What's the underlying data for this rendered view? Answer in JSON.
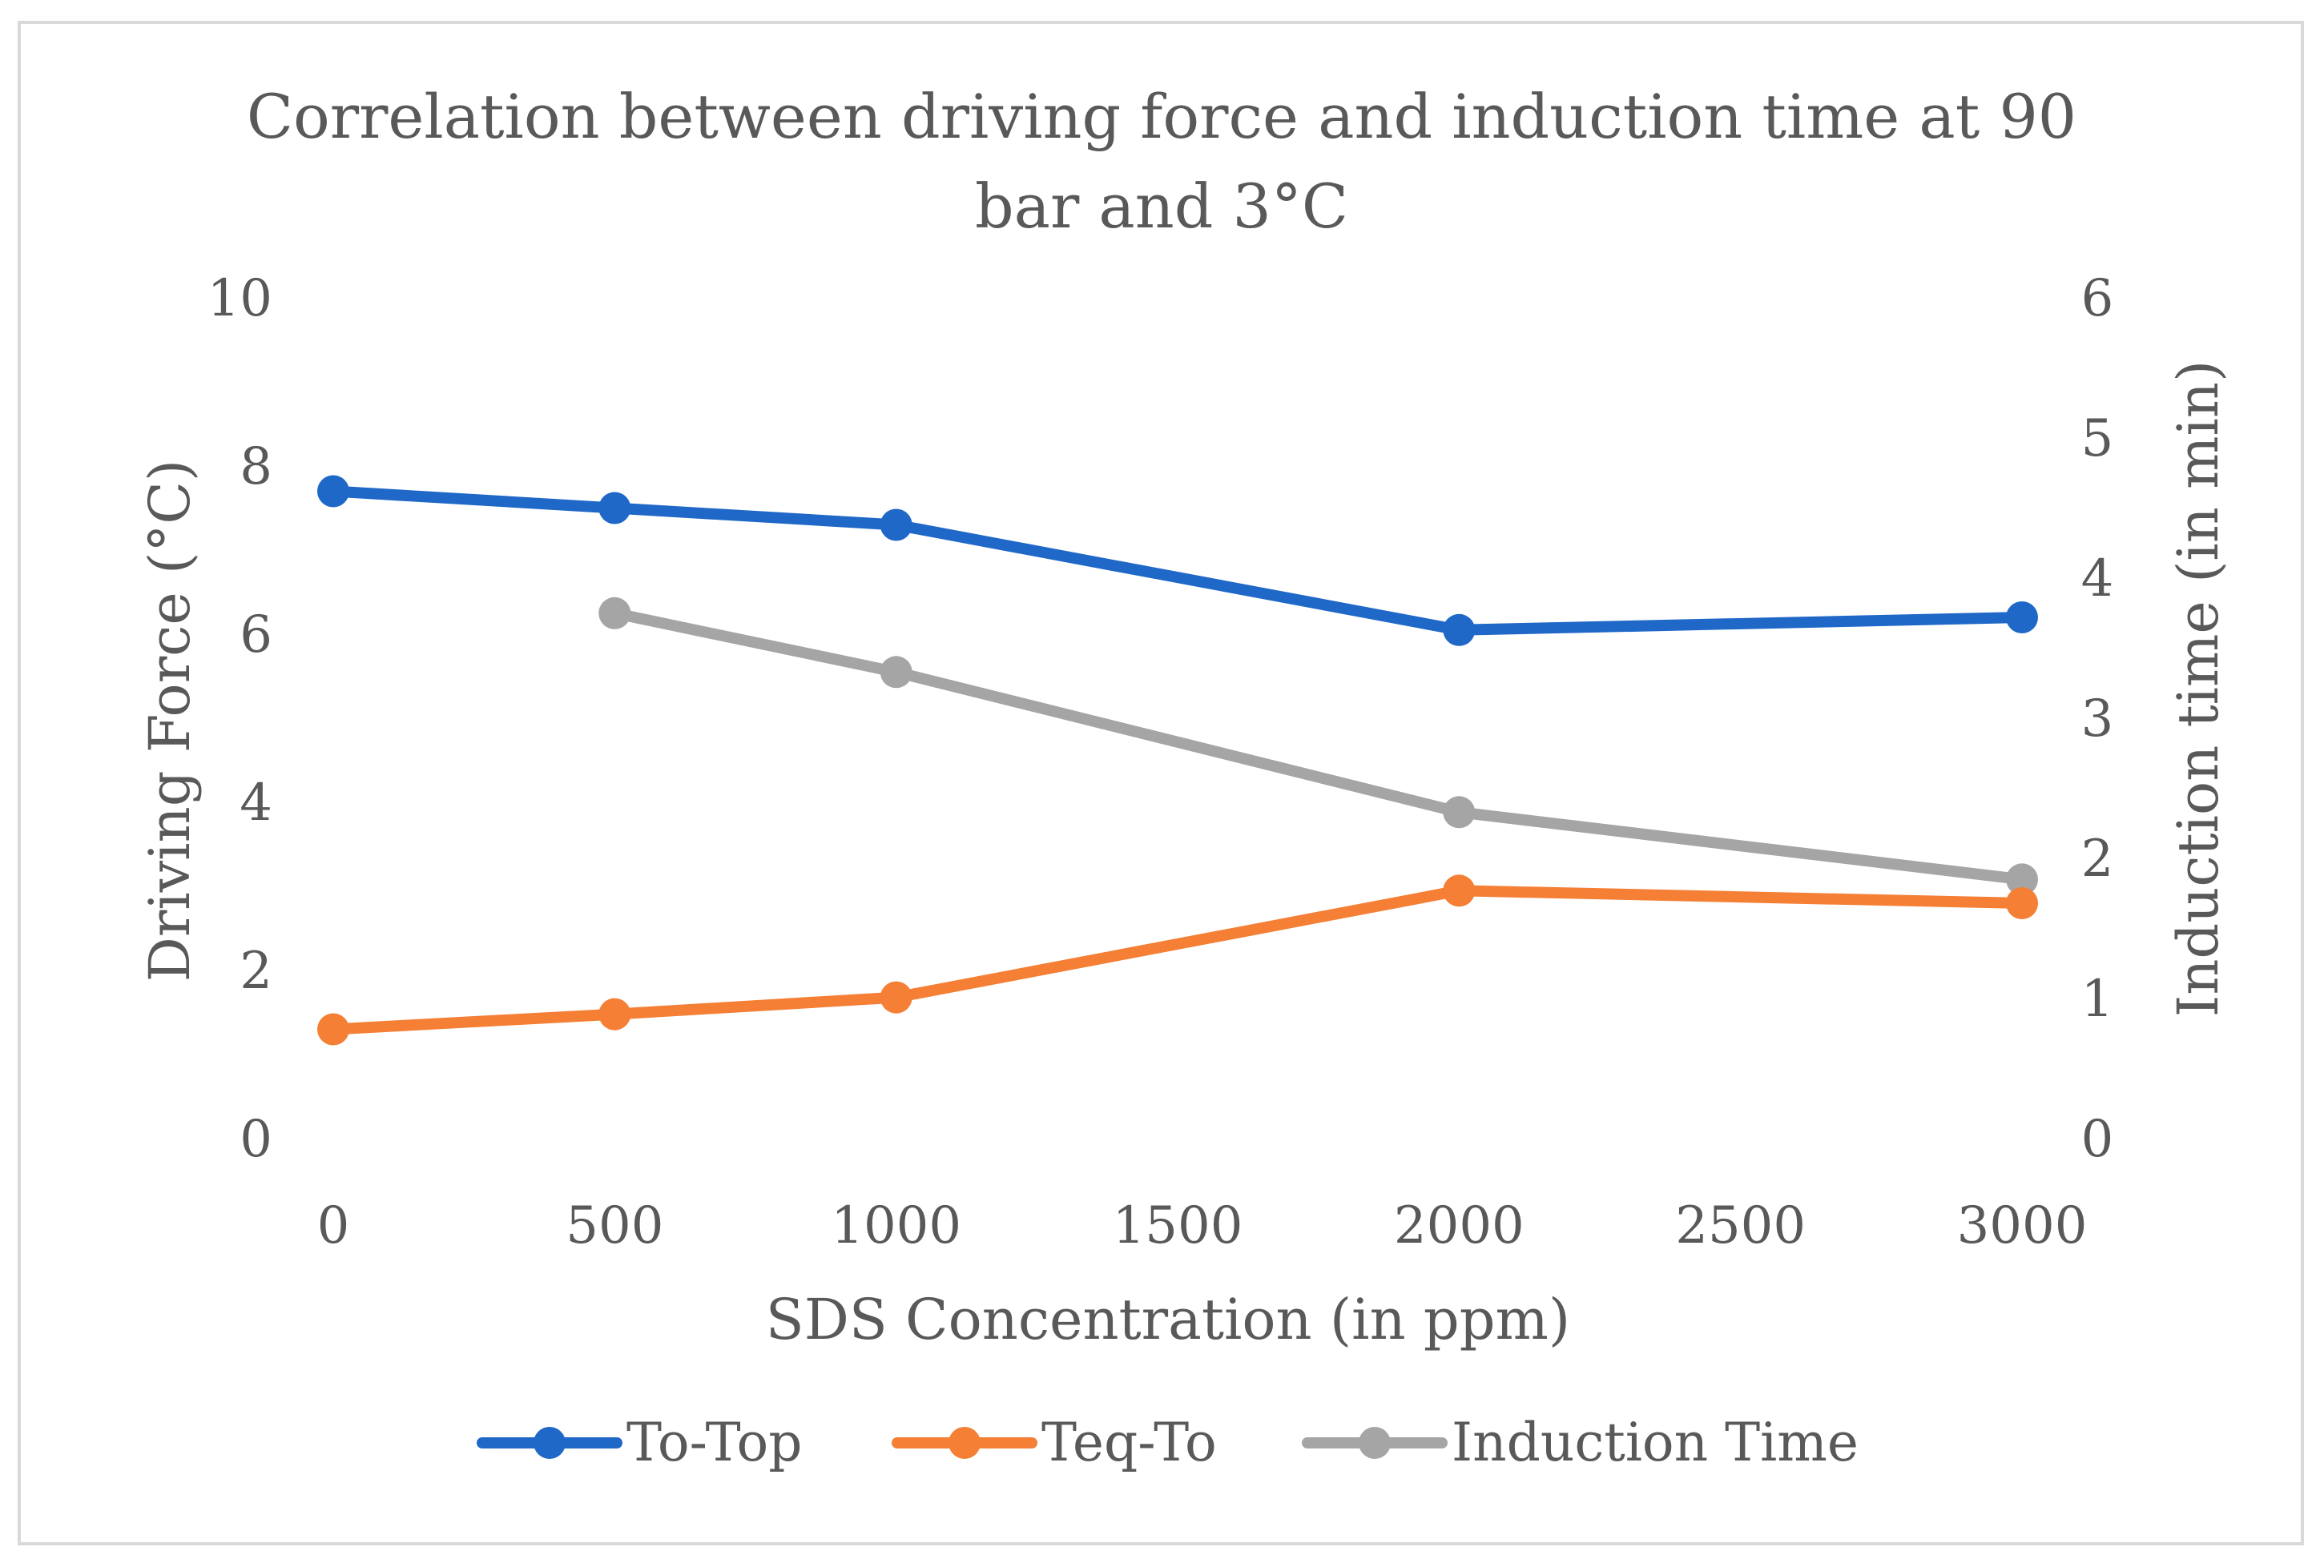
{
  "chart_data": {
    "type": "line",
    "title_lines": [
      "Correlation between driving force and induction time at 90",
      "bar and  3°C"
    ],
    "xlabel": "SDS Concentration (in ppm)",
    "ylabel": "Driving Force (°C)",
    "y2label": "Induction time (in min)",
    "x_ticks": [
      "0",
      "500",
      "1000",
      "1500",
      "2000",
      "2500",
      "3000"
    ],
    "y_ticks": [
      "0",
      "2",
      "4",
      "6",
      "8",
      "10"
    ],
    "y2_ticks": [
      "0",
      "1",
      "2",
      "3",
      "4",
      "5",
      "6"
    ],
    "xlim": [
      0,
      3000
    ],
    "ylim": [
      0,
      10
    ],
    "y2lim": [
      0,
      6
    ],
    "grid": false,
    "legend_position": "bottom",
    "series": [
      {
        "name": "To-Top",
        "axis": "left",
        "color": "#1f68c7",
        "x": [
          0,
          500,
          1000,
          2000,
          3000
        ],
        "y": [
          7.7,
          7.5,
          7.3,
          6.05,
          6.2
        ]
      },
      {
        "name": "Teq-To",
        "axis": "left",
        "color": "#f47f35",
        "x": [
          0,
          500,
          1000,
          2000,
          3000
        ],
        "y": [
          1.3,
          1.48,
          1.68,
          2.95,
          2.8
        ]
      },
      {
        "name": "Induction Time",
        "axis": "right",
        "color": "#a5a5a5",
        "x": [
          500,
          1000,
          2000,
          3000
        ],
        "y": [
          3.75,
          3.33,
          2.33,
          1.85
        ]
      }
    ]
  }
}
